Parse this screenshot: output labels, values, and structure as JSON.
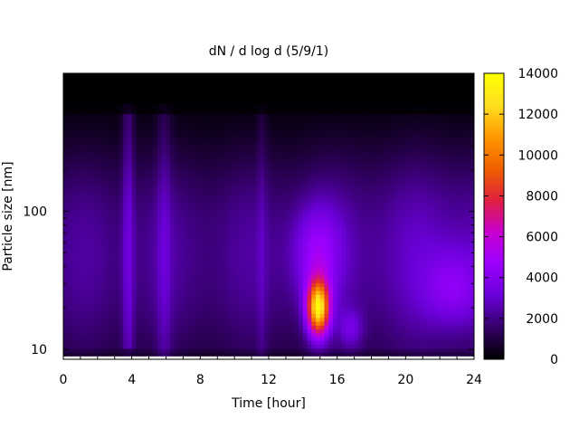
{
  "chart_data": {
    "type": "heatmap",
    "title": "dN / d log d (5/9/1)",
    "xlabel": "Time [hour]",
    "ylabel": "Particle size [nm]",
    "x_range": [
      0,
      24
    ],
    "x_ticks": [
      0,
      4,
      8,
      12,
      16,
      20,
      24
    ],
    "x_minor_step": 1,
    "y_scale": "log",
    "y_range": [
      8.5,
      1000
    ],
    "y_ticks": [
      10,
      100
    ],
    "colorbar": {
      "range": [
        0,
        14000
      ],
      "ticks": [
        0,
        2000,
        4000,
        6000,
        8000,
        10000,
        12000,
        14000
      ],
      "colormap": "gnuplot-pm3d-black-purple-red-yellow",
      "stops": [
        "#000000",
        "#330066",
        "#6a00d8",
        "#9b00ff",
        "#c800d0",
        "#e02040",
        "#f06000",
        "#ff9800",
        "#ffe020",
        "#ffff00"
      ]
    },
    "grid": false,
    "legend": "colorbar-right",
    "features": [
      {
        "name": "background",
        "time_start": 0,
        "time_end": 24,
        "size_nm": 30,
        "approx_value": 2200
      },
      {
        "name": "nucleation-event",
        "time_center": 14.9,
        "size_nm_center": 20,
        "approx_peak_value": 11000
      },
      {
        "name": "evening-mode",
        "time_center": 22.8,
        "size_nm_center": 28,
        "approx_peak_value": 4500
      },
      {
        "name": "vertical-streak",
        "time_center": 3.8,
        "approx_value": 3800
      },
      {
        "name": "black-top-band",
        "size_nm_from": 600,
        "size_nm_to": 1000,
        "approx_value": 0
      }
    ]
  }
}
